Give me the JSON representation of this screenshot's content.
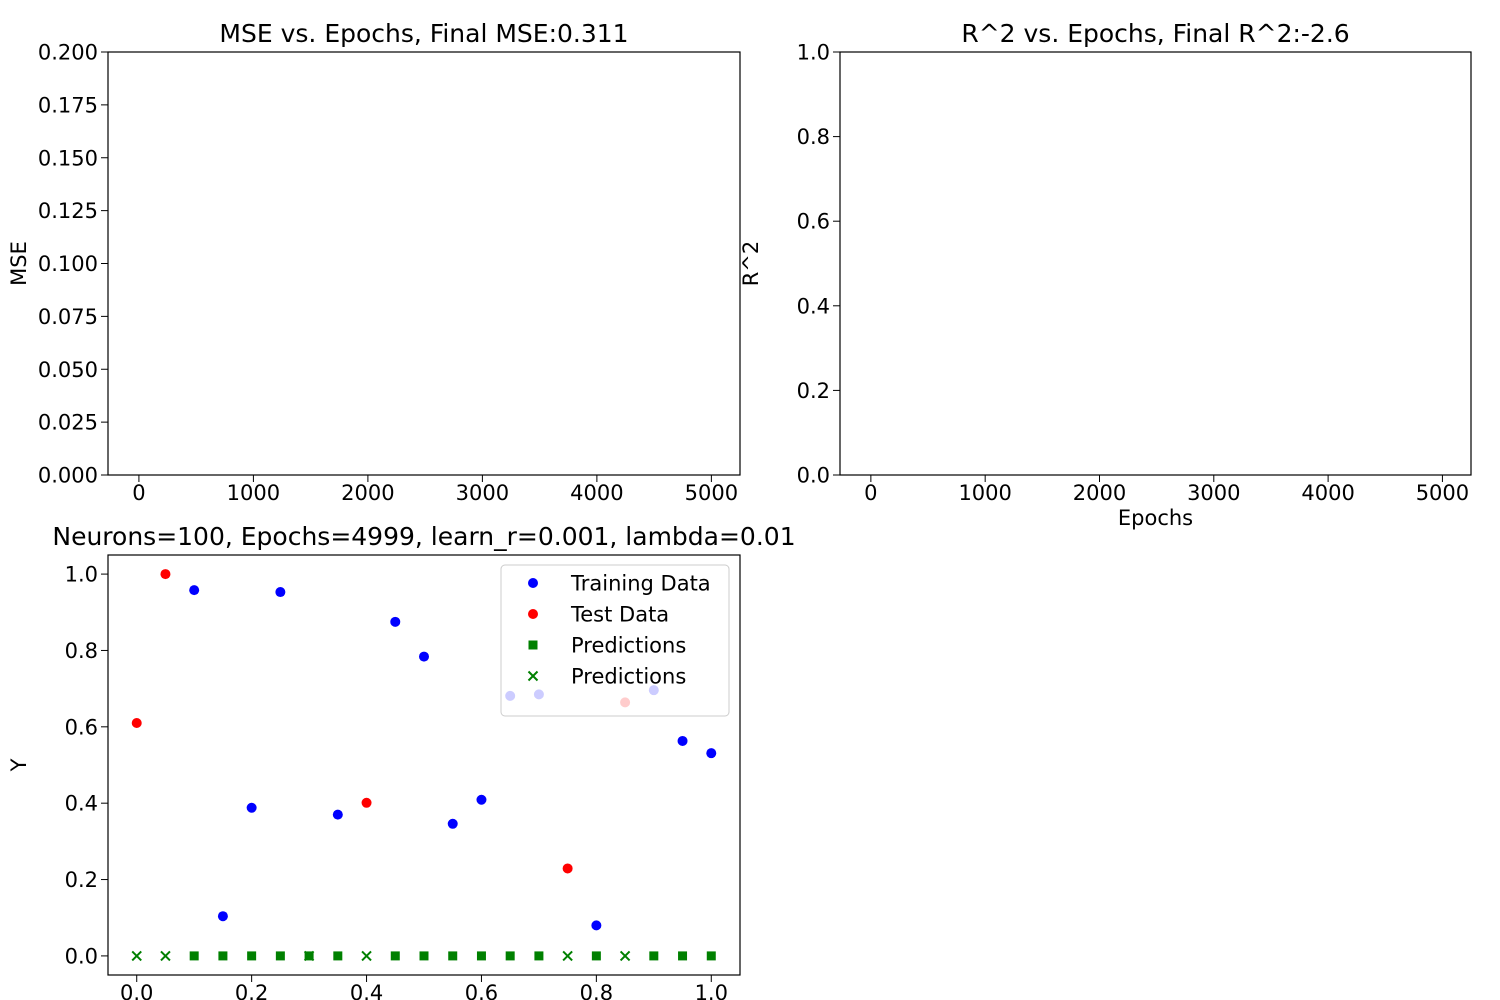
{
  "chart_data": [
    {
      "type": "line",
      "title": "MSE vs. Epochs, Final MSE:0.311",
      "xlabel": "",
      "ylabel": "MSE",
      "xlim": [
        -270,
        5250
      ],
      "ylim": [
        0,
        0.2
      ],
      "xticks": [
        0,
        1000,
        2000,
        3000,
        4000,
        5000
      ],
      "xtick_labels": [
        "0",
        "1000",
        "2000",
        "3000",
        "4000",
        "5000"
      ],
      "yticks": [
        0,
        0.025,
        0.05,
        0.075,
        0.1,
        0.125,
        0.15,
        0.175,
        0.2
      ],
      "ytick_labels": [
        "0.000",
        "0.025",
        "0.050",
        "0.075",
        "0.100",
        "0.125",
        "0.150",
        "0.175",
        "0.200"
      ],
      "series": [],
      "grid": false
    },
    {
      "type": "line",
      "title": "R^2 vs. Epochs, Final R^2:-2.6",
      "xlabel": "Epochs",
      "ylabel": "R^2",
      "xlim": [
        -270,
        5250
      ],
      "ylim": [
        0,
        1
      ],
      "xticks": [
        0,
        1000,
        2000,
        3000,
        4000,
        5000
      ],
      "xtick_labels": [
        "0",
        "1000",
        "2000",
        "3000",
        "4000",
        "5000"
      ],
      "yticks": [
        0,
        0.2,
        0.4,
        0.6,
        0.8,
        1.0
      ],
      "ytick_labels": [
        "0.0",
        "0.2",
        "0.4",
        "0.6",
        "0.8",
        "1.0"
      ],
      "series": [],
      "grid": false
    },
    {
      "type": "scatter",
      "title": "Neurons=100, Epochs=4999, learn_r=0.001, lambda=0.01",
      "xlabel": "",
      "ylabel": "Y",
      "xlim": [
        -0.05,
        1.05
      ],
      "ylim": [
        -0.05,
        1.05
      ],
      "xticks": [
        0,
        0.2,
        0.4,
        0.6,
        0.8,
        1.0
      ],
      "xtick_labels": [
        "0.0",
        "0.2",
        "0.4",
        "0.6",
        "0.8",
        "1.0"
      ],
      "yticks": [
        0,
        0.2,
        0.4,
        0.6,
        0.8,
        1.0
      ],
      "ytick_labels": [
        "0.0",
        "0.2",
        "0.4",
        "0.6",
        "0.8",
        "1.0"
      ],
      "legend": "top-right",
      "grid": false,
      "series": [
        {
          "name": "Training Data",
          "marker": "circle",
          "color": "#0000ff",
          "x": [
            0.1,
            0.15,
            0.2,
            0.25,
            0.35,
            0.45,
            0.5,
            0.55,
            0.6,
            0.65,
            0.7,
            0.8,
            0.9,
            0.95,
            1.0
          ],
          "y": [
            0.958,
            0.104,
            0.388,
            0.953,
            0.37,
            0.875,
            0.784,
            0.346,
            0.409,
            0.681,
            0.685,
            0.08,
            0.696,
            0.563,
            0.531
          ]
        },
        {
          "name": "Test Data",
          "marker": "circle",
          "color": "#ff0000",
          "x": [
            0.0,
            0.05,
            0.4,
            0.75,
            0.85
          ],
          "y": [
            0.61,
            1.0,
            0.401,
            0.229,
            0.664
          ]
        },
        {
          "name": "Predictions",
          "marker": "square",
          "color": "#008000",
          "x": [
            0.1,
            0.15,
            0.2,
            0.25,
            0.3,
            0.35,
            0.45,
            0.5,
            0.55,
            0.6,
            0.65,
            0.7,
            0.8,
            0.9,
            0.95,
            1.0
          ],
          "y": [
            0,
            0,
            0,
            0,
            0,
            0,
            0,
            0,
            0,
            0,
            0,
            0,
            0,
            0,
            0,
            0
          ]
        },
        {
          "name": "Predictions",
          "marker": "x",
          "color": "#008000",
          "x": [
            0.0,
            0.05,
            0.3,
            0.4,
            0.75,
            0.85
          ],
          "y": [
            0,
            0,
            0,
            0,
            0,
            0
          ]
        }
      ]
    }
  ]
}
